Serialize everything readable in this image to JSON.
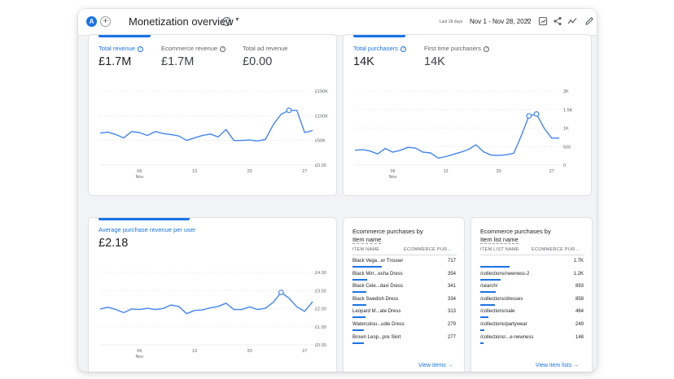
{
  "header": {
    "avatar_letter": "A",
    "add_symbol": "+",
    "title": "Monetization overview",
    "date_prefix": "Last 28 days",
    "date_range": "Nov 1 - Nov 28, 2022",
    "icons": [
      "customize-report-icon",
      "share-icon",
      "insights-icon",
      "edit-icon"
    ]
  },
  "revenue_card": {
    "metrics": [
      {
        "label": "Total revenue",
        "value": "£1.7M"
      },
      {
        "label": "Ecommerce revenue",
        "value": "£1.7M"
      },
      {
        "label": "Total ad revenue",
        "value": "£0.00"
      }
    ]
  },
  "purchasers_card": {
    "metrics": [
      {
        "label": "Total purchasers",
        "value": "14K"
      },
      {
        "label": "First time purchasers",
        "value": "14K"
      }
    ]
  },
  "arpu_card": {
    "metrics": [
      {
        "label": "Average purchase revenue per user",
        "value": "£2.18"
      }
    ]
  },
  "items_table": {
    "title_line1": "Ecommerce purchases by",
    "title_line2": "Item name",
    "col1": "ITEM NAME",
    "col2": "ECOMMERCE PUR...",
    "rows": [
      {
        "name": "Black Vega...er Trouser",
        "value": "717",
        "share": 1.0
      },
      {
        "name": "Black Mirr...esha Dress",
        "value": "354",
        "share": 0.49
      },
      {
        "name": "Black Cele...daxi Dress",
        "value": "341",
        "share": 0.48
      },
      {
        "name": "Black Swedish Dress",
        "value": "334",
        "share": 0.47
      },
      {
        "name": "Leopard M...ate Dress",
        "value": "313",
        "share": 0.44
      },
      {
        "name": "Watercolou...udie Dress",
        "value": "279",
        "share": 0.39
      },
      {
        "name": "Brown Leop...pre Skirt",
        "value": "277",
        "share": 0.39
      }
    ],
    "link": "View items"
  },
  "lists_table": {
    "title_line1": "Ecommerce purchases by",
    "title_line2": "Item list name",
    "col1": "ITEM LIST NAME",
    "col2": "ECOMMERCE PUR...",
    "rows": [
      {
        "name": "",
        "value": "1.7K",
        "share": 1.0
      },
      {
        "name": "/collections/newness-2",
        "value": "1.2K",
        "share": 0.7
      },
      {
        "name": "/search/",
        "value": "893",
        "share": 0.52
      },
      {
        "name": "/collections/dresses",
        "value": "858",
        "share": 0.5
      },
      {
        "name": "/collections/sale",
        "value": "464",
        "share": 0.27
      },
      {
        "name": "/collections/partywear",
        "value": "249",
        "share": 0.15
      },
      {
        "name": "/collections/...e-newness",
        "value": "148",
        "share": 0.09
      }
    ],
    "link": "View item lists"
  },
  "colors": {
    "accent": "#1a73e8",
    "line": "#4285f4",
    "grid": "#e8eaed"
  },
  "chart_data": [
    {
      "type": "line",
      "name": "revenue_chart",
      "x": [
        1,
        2,
        3,
        4,
        5,
        6,
        7,
        8,
        9,
        10,
        11,
        12,
        13,
        14,
        15,
        16,
        17,
        18,
        19,
        20,
        21,
        22,
        23,
        24,
        25,
        26,
        27,
        28
      ],
      "values": [
        65,
        67,
        62,
        55,
        68,
        66,
        60,
        68,
        64,
        62,
        59,
        50,
        55,
        60,
        63,
        57,
        72,
        50,
        50,
        51,
        49,
        52,
        82,
        103,
        111,
        111,
        66,
        70
      ],
      "yticks": [
        "£0.00",
        "£50K",
        "£100K",
        "£150K"
      ],
      "ytick_values": [
        0,
        50,
        100,
        150
      ],
      "ylim": [
        0,
        150
      ],
      "xticks": [
        {
          "day": 6,
          "label": "06",
          "sub": "Nov"
        },
        {
          "day": 13,
          "label": "13",
          "sub": ""
        },
        {
          "day": 20,
          "label": "20",
          "sub": ""
        },
        {
          "day": 27,
          "label": "27",
          "sub": ""
        }
      ],
      "markers": [
        25
      ]
    },
    {
      "type": "line",
      "name": "purchasers_chart",
      "x": [
        1,
        2,
        3,
        4,
        5,
        6,
        7,
        8,
        9,
        10,
        11,
        12,
        13,
        14,
        15,
        16,
        17,
        18,
        19,
        20,
        21,
        22,
        23,
        24,
        25,
        26,
        27,
        28
      ],
      "values": [
        400,
        420,
        380,
        300,
        450,
        350,
        400,
        480,
        460,
        350,
        330,
        190,
        230,
        290,
        350,
        420,
        550,
        360,
        270,
        260,
        280,
        320,
        800,
        1330,
        1380,
        1000,
        730,
        730
      ],
      "yticks": [
        "0",
        "500",
        "1K",
        "1.5K",
        "2K"
      ],
      "ytick_values": [
        0,
        500,
        1000,
        1500,
        2000
      ],
      "ylim": [
        0,
        2000
      ],
      "xticks": [
        {
          "day": 6,
          "label": "06",
          "sub": "Nov"
        },
        {
          "day": 13,
          "label": "13",
          "sub": ""
        },
        {
          "day": 20,
          "label": "20",
          "sub": ""
        },
        {
          "day": 27,
          "label": "27",
          "sub": ""
        }
      ],
      "markers": [
        24,
        25
      ]
    },
    {
      "type": "line",
      "name": "arpu_chart",
      "x": [
        1,
        2,
        3,
        4,
        5,
        6,
        7,
        8,
        9,
        10,
        11,
        12,
        13,
        14,
        15,
        16,
        17,
        18,
        19,
        20,
        21,
        22,
        23,
        24,
        25,
        26,
        27,
        28
      ],
      "values": [
        1.98,
        2.08,
        1.95,
        1.78,
        1.98,
        1.95,
        2.02,
        1.95,
        2.01,
        2.2,
        2.12,
        1.72,
        1.9,
        1.93,
        2.05,
        2.12,
        2.3,
        1.95,
        1.95,
        2.1,
        1.95,
        2.02,
        2.35,
        2.9,
        2.58,
        2.1,
        1.85,
        2.38
      ],
      "yticks": [
        "£0.00",
        "£1.00",
        "£2.00",
        "£3.00",
        "£4.00"
      ],
      "ytick_values": [
        0,
        1,
        2,
        3,
        4
      ],
      "ylim": [
        0,
        4
      ],
      "xticks": [
        {
          "day": 6,
          "label": "06",
          "sub": "Nov"
        },
        {
          "day": 13,
          "label": "13",
          "sub": ""
        },
        {
          "day": 20,
          "label": "20",
          "sub": ""
        },
        {
          "day": 27,
          "label": "27",
          "sub": ""
        }
      ],
      "markers": [
        24
      ]
    }
  ]
}
